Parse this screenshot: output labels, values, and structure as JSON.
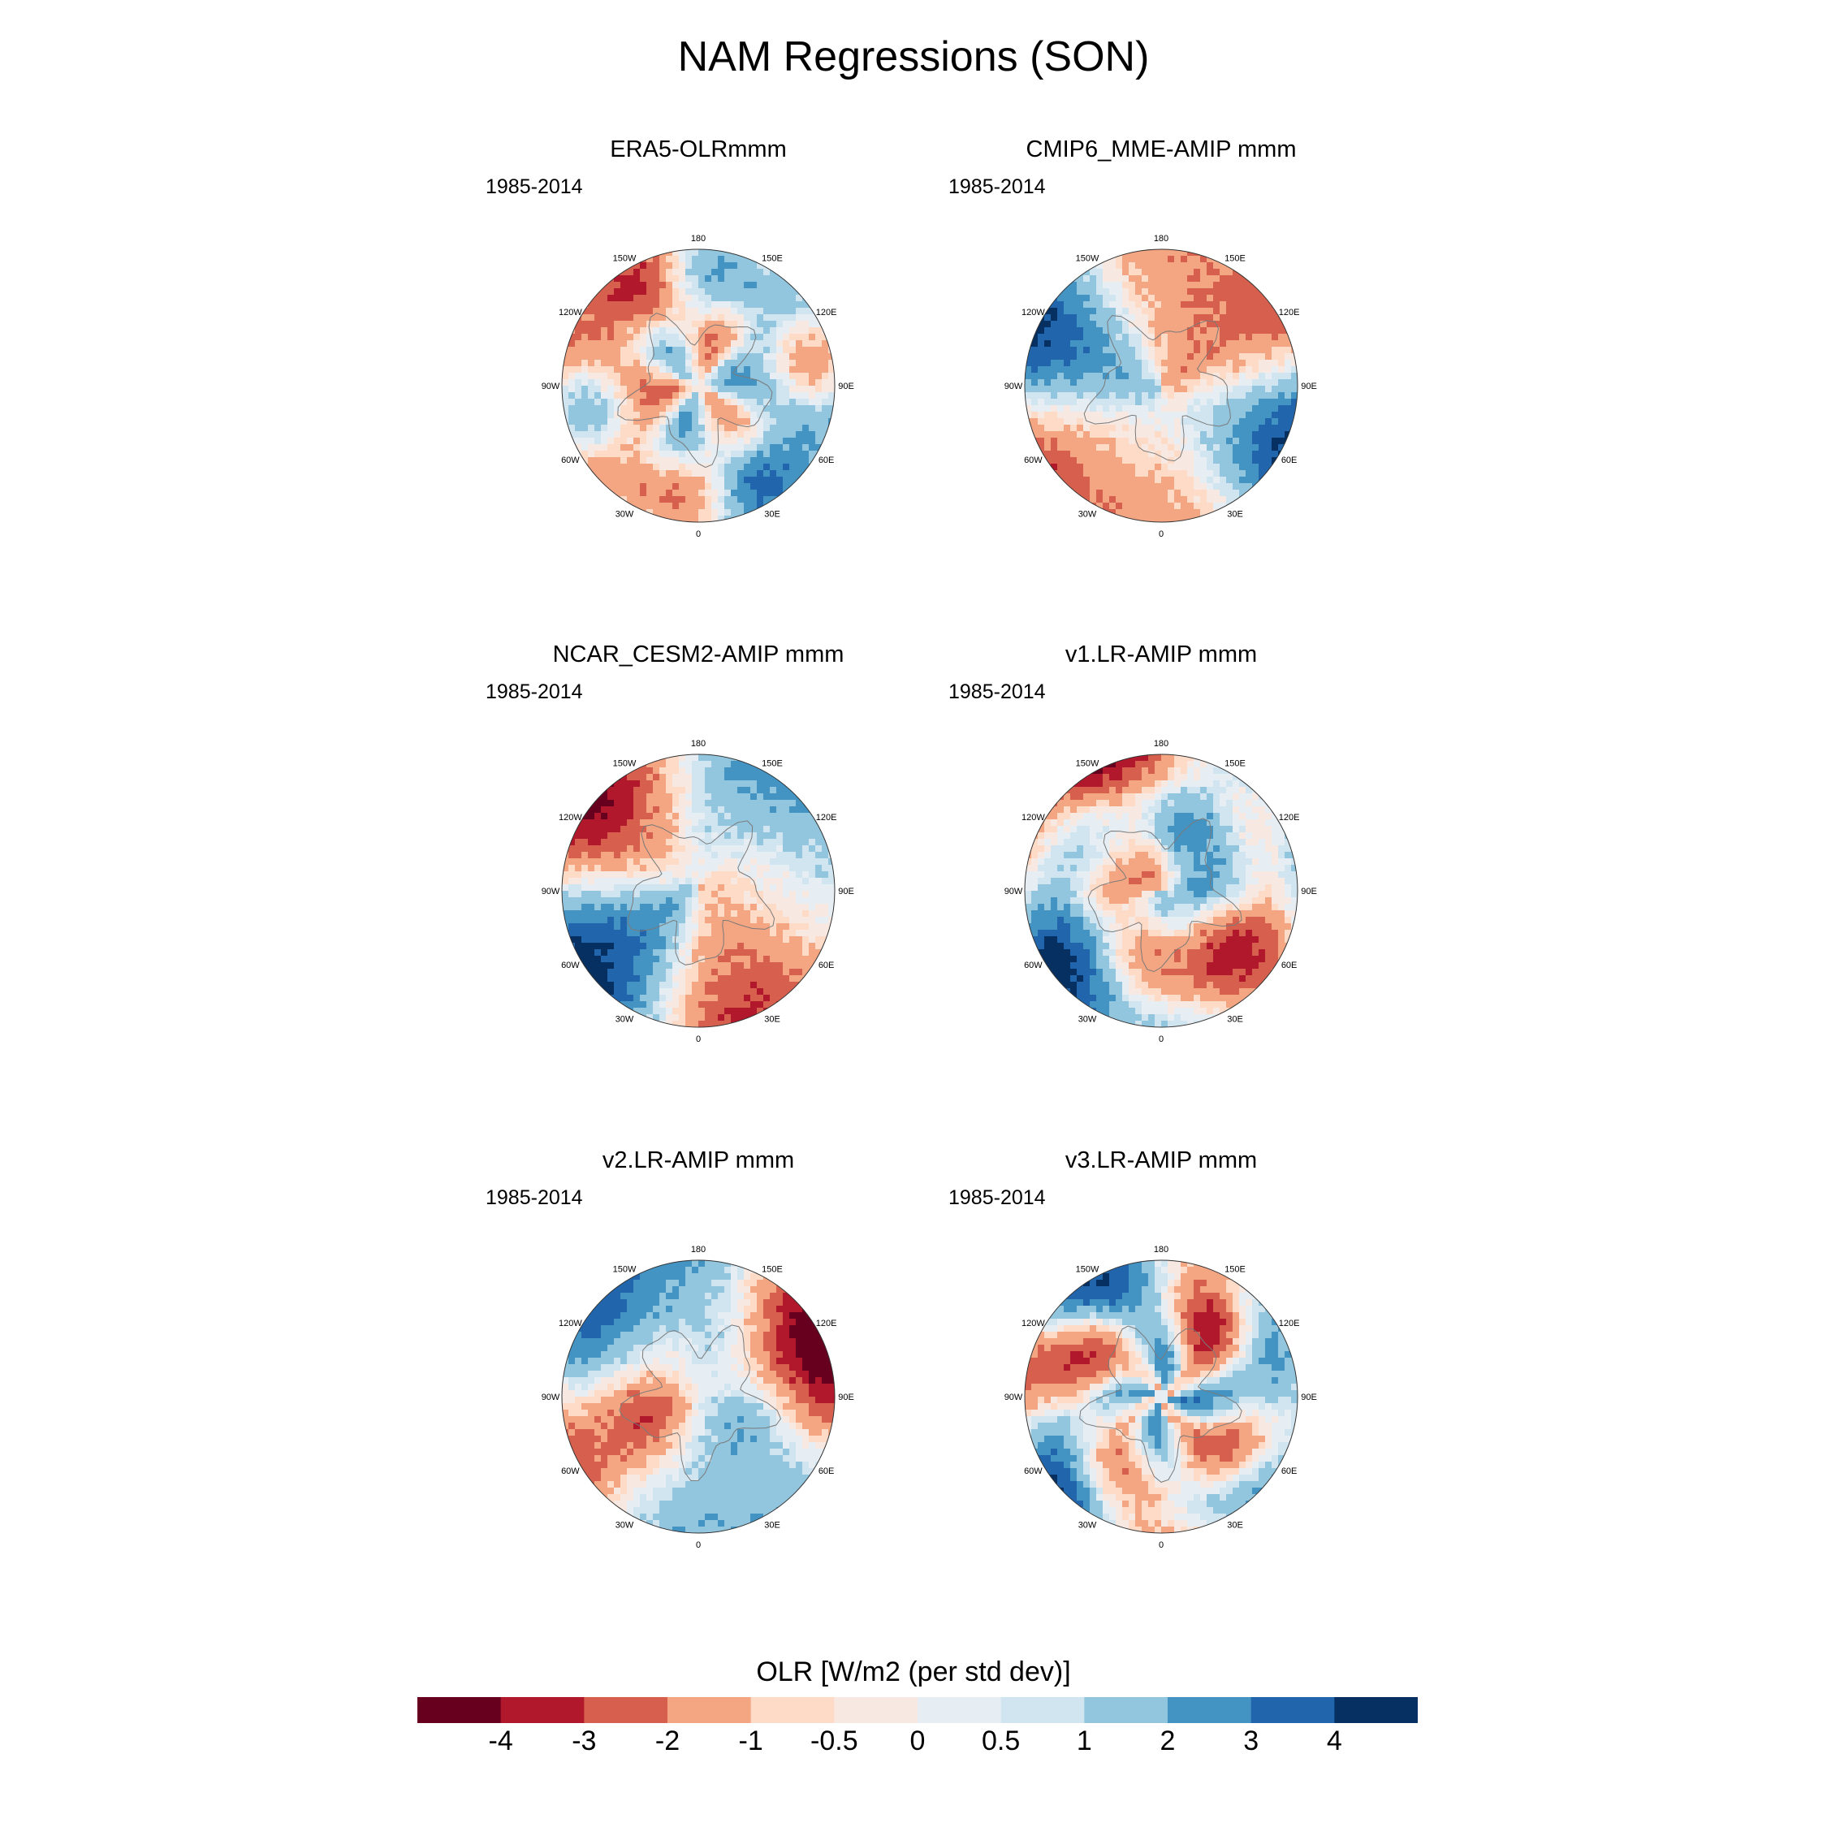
{
  "figure": {
    "title": "NAM Regressions (SON)"
  },
  "chart_data": [
    {
      "type": "heatmap",
      "projection": "polar stereographic (northern hemisphere)",
      "title": "ERA5-OLRmmm",
      "period": "1985-2014",
      "lon_labels": [
        "180",
        "150E",
        "120E",
        "90E",
        "60E",
        "30E",
        "0",
        "30W",
        "60W",
        "90W",
        "120W",
        "150W"
      ]
    },
    {
      "type": "heatmap",
      "projection": "polar stereographic (northern hemisphere)",
      "title": "CMIP6_MME-AMIP  mmm",
      "period": "1985-2014",
      "lon_labels": [
        "180",
        "150E",
        "120E",
        "90E",
        "60E",
        "30E",
        "0",
        "30W",
        "60W",
        "90W",
        "120W",
        "150W"
      ]
    },
    {
      "type": "heatmap",
      "projection": "polar stereographic (northern hemisphere)",
      "title": "NCAR_CESM2-AMIP  mmm",
      "period": "1985-2014",
      "lon_labels": [
        "180",
        "150E",
        "120E",
        "90E",
        "60E",
        "30E",
        "0",
        "30W",
        "60W",
        "90W",
        "120W",
        "150W"
      ]
    },
    {
      "type": "heatmap",
      "projection": "polar stereographic (northern hemisphere)",
      "title": "v1.LR-AMIP  mmm",
      "period": "1985-2014",
      "lon_labels": [
        "180",
        "150E",
        "120E",
        "90E",
        "60E",
        "30E",
        "0",
        "30W",
        "60W",
        "90W",
        "120W",
        "150W"
      ]
    },
    {
      "type": "heatmap",
      "projection": "polar stereographic (northern hemisphere)",
      "title": "v2.LR-AMIP  mmm",
      "period": "1985-2014",
      "lon_labels": [
        "180",
        "150E",
        "120E",
        "90E",
        "60E",
        "30E",
        "0",
        "30W",
        "60W",
        "90W",
        "120W",
        "150W"
      ]
    },
    {
      "type": "heatmap",
      "projection": "polar stereographic (northern hemisphere)",
      "title": "v3.LR-AMIP  mmm",
      "period": "1985-2014",
      "lon_labels": [
        "180",
        "150E",
        "120E",
        "90E",
        "60E",
        "30E",
        "0",
        "30W",
        "60W",
        "90W",
        "120W",
        "150W"
      ]
    }
  ],
  "colorbar": {
    "title": "OLR [W/m2 (per std dev)]",
    "ticks": [
      "-4",
      "-3",
      "-2",
      "-1",
      "-0.5",
      "0",
      "0.5",
      "1",
      "2",
      "3",
      "4"
    ],
    "colors": [
      "#67001f",
      "#b2182b",
      "#d6604d",
      "#f4a582",
      "#fddbc7",
      "#f7e8e1",
      "#e6eef4",
      "#d1e5f0",
      "#92c5de",
      "#4393c3",
      "#2166ac",
      "#053061"
    ]
  }
}
